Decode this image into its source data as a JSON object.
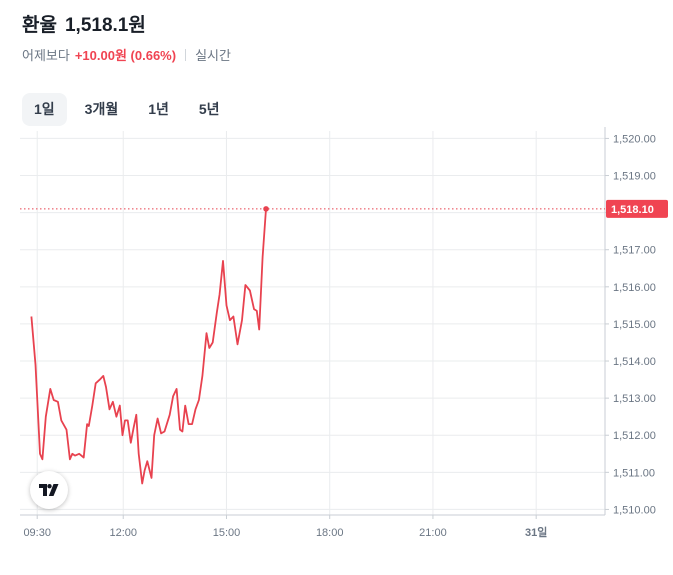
{
  "header": {
    "title": "환율",
    "price": "1,518.1원",
    "change_label": "어제보다",
    "change_value": "+10.00원 (0.66%)",
    "realtime_label": "실시간"
  },
  "tabs": [
    "1일",
    "3개월",
    "1년",
    "5년"
  ],
  "active_tab": 0,
  "colors": {
    "line": "#e8424f",
    "up": "#f04452",
    "grid": "#eaecee"
  },
  "logo_icon": "tradingview-icon",
  "chart_data": {
    "type": "line",
    "title": "",
    "xlabel": "",
    "ylabel": "",
    "x_ticks": [
      "09:30",
      "12:00",
      "15:00",
      "18:00",
      "21:00",
      "31일"
    ],
    "x_range_hours": [
      9.0,
      26.0
    ],
    "y_ticks": [
      "1,510.00",
      "1,511.00",
      "1,512.00",
      "1,513.00",
      "1,514.00",
      "1,515.00",
      "1,516.00",
      "1,517.00",
      "1,518.00",
      "1,519.00",
      "1,520.00"
    ],
    "ylim": [
      1509.85,
      1520.2
    ],
    "last_value_label": "1,518.10",
    "last_value": 1518.1,
    "grid": true,
    "series": [
      {
        "x": [
          9.33,
          9.45,
          9.58,
          9.65,
          9.75,
          9.88,
          9.98,
          10.1,
          10.2,
          10.35,
          10.45,
          10.52,
          10.6,
          10.72,
          10.85,
          10.95,
          11.0,
          11.1,
          11.2,
          11.32,
          11.42,
          11.5,
          11.6,
          11.7,
          11.8,
          11.9,
          11.98,
          12.05,
          12.13,
          12.22,
          12.3,
          12.38,
          12.45,
          12.55,
          12.62,
          12.7,
          12.82,
          12.9,
          13.0,
          13.1,
          13.2,
          13.35,
          13.45,
          13.55,
          13.65,
          13.72,
          13.8,
          13.9,
          14.0,
          14.1,
          14.2,
          14.3,
          14.42,
          14.5,
          14.6,
          14.72,
          14.8,
          14.9,
          15.0,
          15.1,
          15.2,
          15.32,
          15.45,
          15.55,
          15.68,
          15.8,
          15.88,
          15.95,
          16.05,
          16.15
        ],
        "y": [
          1515.2,
          1513.9,
          1511.5,
          1511.35,
          1512.5,
          1513.25,
          1512.95,
          1512.9,
          1512.4,
          1512.15,
          1511.35,
          1511.5,
          1511.45,
          1511.5,
          1511.4,
          1512.3,
          1512.25,
          1512.8,
          1513.4,
          1513.5,
          1513.6,
          1513.3,
          1512.7,
          1512.9,
          1512.5,
          1512.8,
          1512.0,
          1512.4,
          1512.4,
          1511.8,
          1512.2,
          1512.55,
          1511.5,
          1510.7,
          1511.05,
          1511.3,
          1510.85,
          1512.0,
          1512.45,
          1512.05,
          1512.1,
          1512.55,
          1513.05,
          1513.25,
          1512.15,
          1512.1,
          1512.8,
          1512.3,
          1512.3,
          1512.7,
          1512.95,
          1513.6,
          1514.75,
          1514.35,
          1514.5,
          1515.3,
          1515.8,
          1516.7,
          1515.5,
          1515.1,
          1515.2,
          1514.45,
          1515.1,
          1516.05,
          1515.9,
          1515.4,
          1515.35,
          1514.85,
          1516.8,
          1518.1
        ]
      }
    ]
  }
}
